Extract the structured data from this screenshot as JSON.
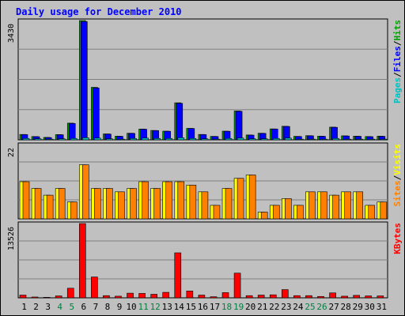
{
  "chart_data": {
    "type": "bar",
    "title": "Daily usage for December 2010",
    "categories": [
      "1",
      "2",
      "3",
      "4",
      "5",
      "6",
      "7",
      "8",
      "9",
      "10",
      "11",
      "12",
      "13",
      "14",
      "15",
      "16",
      "17",
      "18",
      "19",
      "20",
      "21",
      "22",
      "23",
      "24",
      "25",
      "26",
      "27",
      "28",
      "29",
      "30",
      "31"
    ],
    "weekend_days": [
      "4",
      "5",
      "11",
      "12",
      "18",
      "19",
      "25",
      "26"
    ],
    "grid": true,
    "panels": [
      {
        "name": "hits",
        "ymax": 3430,
        "ymax_label": "3430",
        "legend": [
          {
            "text": "Pages",
            "color": "#00c0c0"
          },
          {
            "text": "/",
            "color": "#000000"
          },
          {
            "text": "Files",
            "color": "#0000ff"
          },
          {
            "text": "/",
            "color": "#000000"
          },
          {
            "text": "Hits",
            "color": "#00a000"
          }
        ],
        "series": [
          {
            "name": "Hits",
            "color": "#00a000",
            "values": [
              155,
              95,
              70,
              150,
              480,
              3430,
              1510,
              170,
              105,
              190,
              310,
              270,
              250,
              1065,
              330,
              155,
              100,
              250,
              830,
              140,
              190,
              315,
              390,
              100,
              120,
              105,
              365,
              115,
              105,
              95,
              105
            ]
          },
          {
            "name": "Files",
            "color": "#0000ff",
            "values": [
              150,
              90,
              65,
              145,
              470,
              3400,
              1490,
              165,
              100,
              185,
              305,
              265,
              245,
              1050,
              325,
              150,
              95,
              245,
              820,
              135,
              185,
              310,
              385,
              95,
              115,
              100,
              360,
              110,
              100,
              90,
              100
            ]
          },
          {
            "name": "Pages",
            "color": "#00c0c0",
            "values": [
              40,
              30,
              20,
              30,
              40,
              60,
              50,
              30,
              20,
              40,
              50,
              40,
              40,
              60,
              40,
              30,
              20,
              40,
              50,
              30,
              30,
              40,
              50,
              20,
              20,
              20,
              40,
              20,
              20,
              20,
              20
            ]
          }
        ]
      },
      {
        "name": "visits",
        "ymax": 22,
        "ymax_label": "22",
        "legend": [
          {
            "text": "Sites",
            "color": "#ff8000"
          },
          {
            "text": "/",
            "color": "#000000"
          },
          {
            "text": "Visits",
            "color": "#ffff00"
          }
        ],
        "series": [
          {
            "name": "Visits",
            "color": "#ffff00",
            "values": [
              11,
              9,
              7,
              9,
              5,
              16,
              9,
              9,
              8,
              9,
              11,
              9,
              11,
              11,
              10,
              8,
              4,
              9,
              12,
              13,
              2,
              4,
              6,
              4,
              8,
              8,
              7,
              8,
              8,
              4,
              5
            ]
          },
          {
            "name": "Sites",
            "color": "#ff8000",
            "values": [
              11,
              9,
              7,
              9,
              5,
              16,
              9,
              9,
              8,
              9,
              11,
              9,
              11,
              11,
              10,
              8,
              4,
              9,
              12,
              13,
              2,
              4,
              6,
              4,
              8,
              8,
              7,
              8,
              8,
              4,
              5
            ]
          }
        ]
      },
      {
        "name": "kbytes",
        "ymax": 13526,
        "ymax_label": "13526",
        "legend": [
          {
            "text": "KBytes",
            "color": "#ff0000"
          }
        ],
        "series": [
          {
            "name": "KBytes",
            "color": "#ff0000",
            "values": [
              500,
              150,
              100,
              350,
              1750,
              13526,
              3800,
              400,
              300,
              850,
              800,
              650,
              1000,
              8200,
              1250,
              500,
              200,
              950,
              4500,
              400,
              500,
              550,
              1500,
              400,
              400,
              250,
              900,
              300,
              450,
              350,
              350
            ]
          }
        ]
      }
    ]
  }
}
